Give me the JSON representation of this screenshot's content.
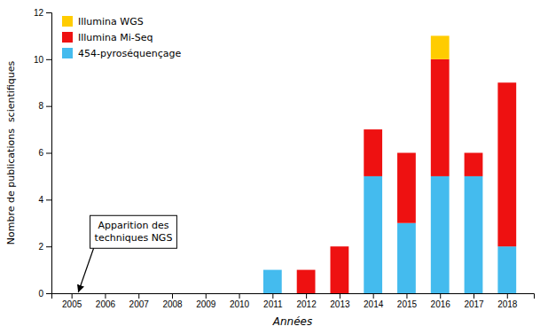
{
  "chart_data": {
    "type": "bar",
    "stacked": true,
    "xlabel": "Années",
    "ylabel": "Nombre de publications  scientifiques",
    "x": [
      2005,
      2006,
      2007,
      2008,
      2009,
      2010,
      2011,
      2012,
      2013,
      2014,
      2015,
      2016,
      2017,
      2018
    ],
    "xlim": [
      2004.4,
      2018.8
    ],
    "xticks": [
      2005,
      2006,
      2007,
      2008,
      2009,
      2010,
      2011,
      2012,
      2013,
      2014,
      2015,
      2016,
      2017,
      2018
    ],
    "ylim": [
      0,
      12
    ],
    "yticks": [
      0,
      2,
      4,
      6,
      8,
      10,
      12
    ],
    "series": [
      {
        "name": "454-pyroséquençage",
        "color": "#44BBEE",
        "values": [
          0,
          0,
          0,
          0,
          0,
          0,
          1,
          0,
          0,
          5,
          3,
          5,
          5,
          2
        ]
      },
      {
        "name": "Illumina Mi-Seq",
        "color": "#EE1111",
        "values": [
          0,
          0,
          0,
          0,
          0,
          0,
          0,
          1,
          2,
          2,
          3,
          5,
          1,
          7
        ]
      },
      {
        "name": "Illumina WGS",
        "color": "#FFCC00",
        "values": [
          0,
          0,
          0,
          0,
          0,
          0,
          0,
          0,
          0,
          0,
          0,
          1,
          0,
          0
        ]
      }
    ],
    "annotations": [
      {
        "text": "Apparition des\ntechniques NGS"
      }
    ],
    "legend": "upper left",
    "grid": false
  }
}
